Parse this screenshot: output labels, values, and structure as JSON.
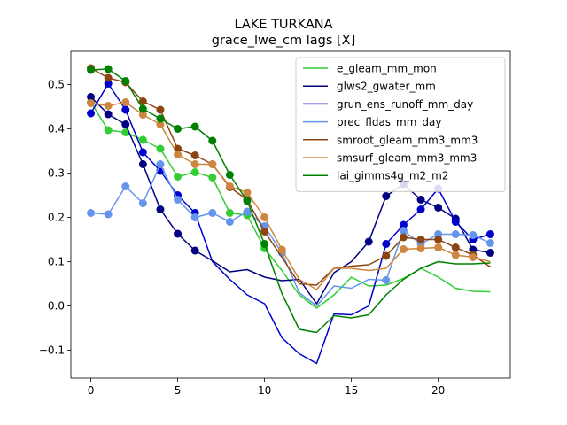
{
  "chart_data": {
    "type": "line",
    "title": "LAKE TURKANA",
    "subtitle": "grace_lwe_cm lags [X]",
    "xlabel": "",
    "ylabel": "",
    "xlim": [
      -1.15,
      24.15
    ],
    "ylim": [
      -0.163,
      0.575
    ],
    "xticks": [
      0,
      5,
      10,
      15,
      20
    ],
    "yticks": [
      -0.1,
      0.0,
      0.1,
      0.2,
      0.3,
      0.4,
      0.5
    ],
    "ytick_labels": [
      "−0.1",
      "0.0",
      "0.1",
      "0.2",
      "0.3",
      "0.4",
      "0.5"
    ],
    "legend_position": "top-right",
    "x": [
      0,
      1,
      2,
      3,
      4,
      5,
      6,
      7,
      8,
      9,
      10,
      11,
      12,
      13,
      14,
      15,
      16,
      17,
      18,
      19,
      20,
      21,
      22,
      23
    ],
    "series": [
      {
        "name": "e_gleam_mm_mon",
        "color": "#32cd32",
        "values": [
          0.46,
          0.397,
          0.392,
          0.375,
          0.355,
          0.292,
          0.302,
          0.29,
          0.21,
          0.205,
          0.13,
          0.08,
          0.025,
          -0.005,
          0.025,
          0.065,
          0.045,
          0.047,
          0.062,
          0.085,
          0.065,
          0.04,
          0.033,
          0.032
        ],
        "markers": [
          0,
          1,
          2,
          3,
          4,
          5,
          6,
          7,
          8,
          9,
          10
        ]
      },
      {
        "name": "glws2_gwater_mm",
        "color": "#000080",
        "values": [
          0.472,
          0.433,
          0.41,
          0.32,
          0.218,
          0.163,
          0.125,
          0.102,
          0.077,
          0.082,
          0.065,
          0.057,
          0.06,
          0.005,
          0.075,
          0.1,
          0.145,
          0.248,
          0.275,
          0.24,
          0.222,
          0.197,
          0.127,
          0.12
        ],
        "markers": [
          0,
          1,
          2,
          3,
          4,
          5,
          6,
          16,
          17,
          18,
          19,
          20,
          21,
          22,
          23
        ]
      },
      {
        "name": "grun_ens_runoff_mm_day",
        "color": "#0000cd",
        "values": [
          0.435,
          0.502,
          0.443,
          0.347,
          0.305,
          0.25,
          0.21,
          0.1,
          0.06,
          0.025,
          0.005,
          -0.072,
          -0.108,
          -0.13,
          -0.018,
          -0.02,
          0.0,
          0.14,
          0.183,
          0.218,
          0.265,
          0.19,
          0.15,
          0.162
        ],
        "markers": [
          0,
          1,
          2,
          3,
          4,
          5,
          6,
          17,
          18,
          19,
          20,
          21,
          22,
          23
        ]
      },
      {
        "name": "prec_fldas_mm_day",
        "color": "#6495ed",
        "values": [
          0.21,
          0.207,
          0.27,
          0.232,
          0.32,
          0.24,
          0.2,
          0.21,
          0.19,
          0.213,
          0.18,
          0.12,
          0.03,
          0.0,
          0.045,
          0.04,
          0.06,
          0.058,
          0.17,
          0.14,
          0.162,
          0.162,
          0.16,
          0.142
        ],
        "markers": [
          0,
          1,
          2,
          3,
          4,
          5,
          6,
          7,
          8,
          9,
          10,
          11,
          17,
          18,
          19,
          20,
          21,
          22,
          23
        ]
      },
      {
        "name": "smroot_gleam_mm3_mm3",
        "color": "#8b4513",
        "values": [
          0.537,
          0.515,
          0.505,
          0.462,
          0.443,
          0.355,
          0.34,
          0.32,
          0.268,
          0.24,
          0.168,
          0.11,
          0.05,
          0.047,
          0.085,
          0.09,
          0.093,
          0.113,
          0.155,
          0.15,
          0.15,
          0.132,
          0.115,
          0.088
        ],
        "markers": [
          0,
          1,
          2,
          3,
          4,
          5,
          6,
          7,
          8,
          9,
          10,
          17,
          18,
          19,
          20,
          21,
          22
        ]
      },
      {
        "name": "smsurf_gleam_mm3_mm3",
        "color": "#cd853f",
        "values": [
          0.458,
          0.452,
          0.46,
          0.432,
          0.41,
          0.342,
          0.32,
          0.32,
          0.27,
          0.256,
          0.2,
          0.127,
          0.06,
          0.037,
          0.085,
          0.085,
          0.08,
          0.085,
          0.128,
          0.13,
          0.132,
          0.115,
          0.11,
          0.1
        ],
        "markers": [
          0,
          1,
          2,
          3,
          4,
          5,
          6,
          7,
          8,
          9,
          10,
          11,
          18,
          19,
          20,
          21,
          22
        ]
      },
      {
        "name": "lai_gimms4g_m2_m2",
        "color": "#008000",
        "values": [
          0.533,
          0.535,
          0.508,
          0.445,
          0.423,
          0.4,
          0.405,
          0.373,
          0.296,
          0.237,
          0.14,
          0.028,
          -0.053,
          -0.06,
          -0.022,
          -0.027,
          -0.02,
          0.025,
          0.06,
          0.085,
          0.1,
          0.095,
          0.095,
          0.097
        ],
        "markers": [
          0,
          1,
          2,
          3,
          4,
          5,
          6,
          7,
          8,
          9,
          10
        ]
      }
    ]
  }
}
